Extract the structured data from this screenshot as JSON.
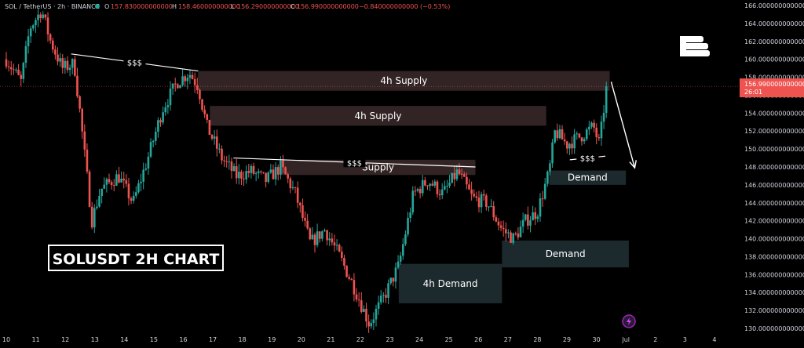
{
  "header": {
    "symbol": "SOL / TetherUS · 2h · BINANCE",
    "o_label": "O",
    "o_value": "157.830000000000",
    "h_label": "H",
    "h_value": "158.460000000000",
    "l_label": "L",
    "l_value": "156.290000000000",
    "c_label": "C",
    "c_value": "156.990000000000",
    "change": "−0.840000000000 (−0.53%)"
  },
  "price_tag": {
    "value": "156.990000000000",
    "countdown": "26:01"
  },
  "watermark_title": "SOLUSDT 2H CHART",
  "colors": {
    "background": "#000000",
    "bull": "#26a69a",
    "bear": "#ef5350",
    "supply_zone": "#3b2a2a",
    "demand_zone": "#1d2b2f",
    "axis_text": "#d1d4dc",
    "price_tag": "#ef5350"
  },
  "chart_data": {
    "type": "candlestick",
    "y_axis": {
      "min": 130,
      "max": 166,
      "step": 2,
      "labels": [
        "166.000000000000",
        "164.000000000000",
        "162.000000000000",
        "160.000000000000",
        "158.000000000000",
        "156.000000000000",
        "154.000000000000",
        "152.000000000000",
        "150.000000000000",
        "148.000000000000",
        "146.000000000000",
        "144.000000000000",
        "142.000000000000",
        "140.000000000000",
        "138.000000000000",
        "136.000000000000",
        "134.000000000000",
        "132.000000000000",
        "130.000000000000"
      ]
    },
    "x_axis": {
      "labels": [
        "10",
        "11",
        "12",
        "13",
        "14",
        "15",
        "16",
        "17",
        "18",
        "19",
        "20",
        "21",
        "22",
        "23",
        "24",
        "25",
        "26",
        "27",
        "28",
        "29",
        "30",
        "Jul",
        "2",
        "3",
        "4"
      ]
    },
    "last_price": 156.99,
    "price_path": [
      {
        "day": 10.0,
        "price": 160.0
      },
      {
        "day": 10.5,
        "price": 157.5
      },
      {
        "day": 10.8,
        "price": 163.5
      },
      {
        "day": 11.2,
        "price": 165.5
      },
      {
        "day": 11.5,
        "price": 162.0
      },
      {
        "day": 11.9,
        "price": 159.0
      },
      {
        "day": 12.3,
        "price": 159.5
      },
      {
        "day": 12.5,
        "price": 154.0
      },
      {
        "day": 12.9,
        "price": 142.0
      },
      {
        "day": 13.2,
        "price": 145.5
      },
      {
        "day": 13.8,
        "price": 147.0
      },
      {
        "day": 14.3,
        "price": 144.0
      },
      {
        "day": 14.8,
        "price": 149.0
      },
      {
        "day": 15.3,
        "price": 154.5
      },
      {
        "day": 15.8,
        "price": 157.5
      },
      {
        "day": 16.2,
        "price": 158.5
      },
      {
        "day": 16.5,
        "price": 157.0
      },
      {
        "day": 16.8,
        "price": 152.5
      },
      {
        "day": 17.3,
        "price": 149.0
      },
      {
        "day": 17.8,
        "price": 147.0
      },
      {
        "day": 18.3,
        "price": 147.5
      },
      {
        "day": 18.8,
        "price": 146.5
      },
      {
        "day": 19.3,
        "price": 148.0
      },
      {
        "day": 19.8,
        "price": 145.0
      },
      {
        "day": 20.3,
        "price": 139.5
      },
      {
        "day": 20.8,
        "price": 141.0
      },
      {
        "day": 21.3,
        "price": 138.0
      },
      {
        "day": 21.8,
        "price": 134.5
      },
      {
        "day": 22.3,
        "price": 130.5
      },
      {
        "day": 22.8,
        "price": 133.5
      },
      {
        "day": 23.3,
        "price": 137.0
      },
      {
        "day": 23.8,
        "price": 145.0
      },
      {
        "day": 24.3,
        "price": 146.5
      },
      {
        "day": 24.8,
        "price": 145.0
      },
      {
        "day": 25.3,
        "price": 147.5
      },
      {
        "day": 25.8,
        "price": 144.5
      },
      {
        "day": 26.3,
        "price": 144.0
      },
      {
        "day": 26.8,
        "price": 141.0
      },
      {
        "day": 27.2,
        "price": 140.0
      },
      {
        "day": 27.6,
        "price": 142.0
      },
      {
        "day": 28.0,
        "price": 143.0
      },
      {
        "day": 28.4,
        "price": 147.5
      },
      {
        "day": 28.6,
        "price": 152.0
      },
      {
        "day": 29.0,
        "price": 150.5
      },
      {
        "day": 29.5,
        "price": 151.5
      },
      {
        "day": 29.9,
        "price": 152.5
      },
      {
        "day": 30.1,
        "price": 150.5
      },
      {
        "day": 30.35,
        "price": 157.0
      }
    ],
    "zones": [
      {
        "label": "4h Supply",
        "kind": "supply",
        "day_start": 16.5,
        "day_end": 30.45,
        "price_top": 158.7,
        "price_bottom": 156.5
      },
      {
        "label": "4h Supply",
        "kind": "supply",
        "day_start": 16.9,
        "day_end": 28.3,
        "price_top": 154.8,
        "price_bottom": 152.6
      },
      {
        "label": "Supply",
        "kind": "supply",
        "day_start": 19.3,
        "day_end": 25.9,
        "price_top": 148.8,
        "price_bottom": 147.1
      },
      {
        "label": "Demand",
        "kind": "demand",
        "day_start": 28.4,
        "day_end": 31.0,
        "price_top": 147.6,
        "price_bottom": 146.0
      },
      {
        "label": "Demand",
        "kind": "demand",
        "day_start": 26.8,
        "day_end": 31.1,
        "price_top": 139.8,
        "price_bottom": 136.8
      },
      {
        "label": "4h Demand",
        "kind": "demand",
        "day_start": 23.3,
        "day_end": 26.8,
        "price_top": 137.2,
        "price_bottom": 132.8
      }
    ],
    "annotations": [
      {
        "label": "$$$",
        "day_start": 12.2,
        "price_start": 160.6,
        "day_end": 16.5,
        "price_end": 158.7
      },
      {
        "label": "$$$",
        "day_start": 17.7,
        "price_start": 149.0,
        "day_end": 25.9,
        "price_end": 148.0
      },
      {
        "label": "$$$",
        "day_start": 29.1,
        "price_start": 148.8,
        "day_end": 30.3,
        "price_end": 149.2
      }
    ],
    "projection": {
      "day_start": 30.5,
      "price_start": 157.5,
      "day_end": 31.3,
      "price_end": 147.9
    },
    "projection_arrow": {
      "direction": "down"
    }
  }
}
